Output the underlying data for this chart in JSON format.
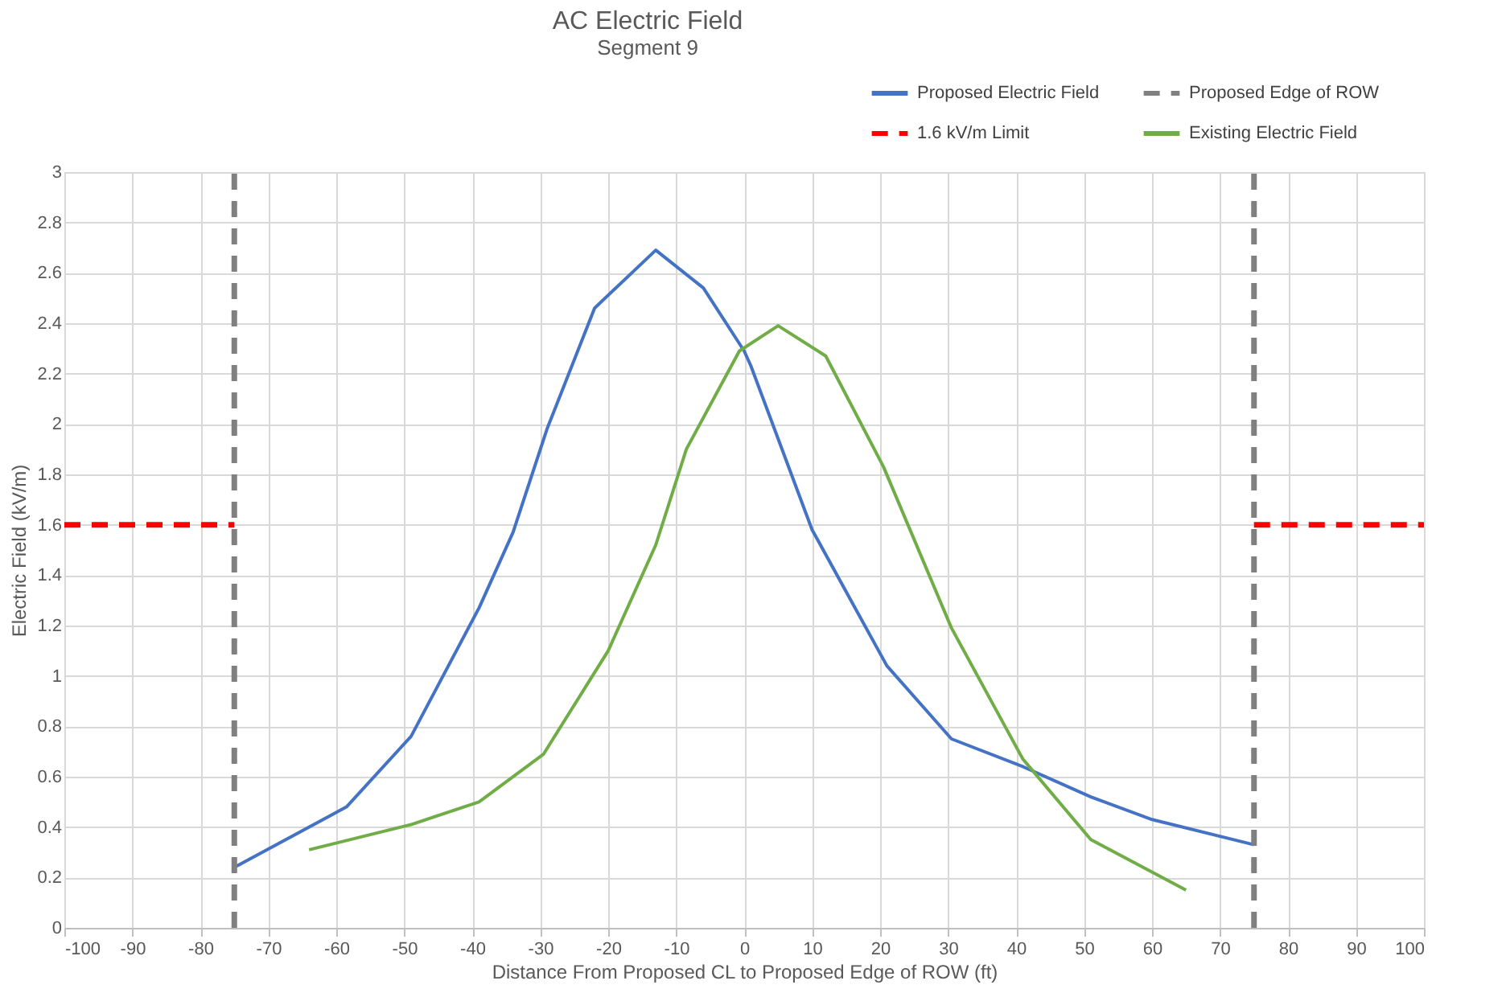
{
  "chart_data": {
    "type": "line",
    "title": "AC Electric Field",
    "subtitle": "Segment 9",
    "xlabel": "Distance From Proposed CL to Proposed Edge of ROW (ft)",
    "ylabel": "Electric Field (kV/m)",
    "xlim": [
      -100,
      100
    ],
    "xticks": [
      -100,
      -90,
      -80,
      -70,
      -60,
      -50,
      -40,
      -30,
      -20,
      -10,
      0,
      10,
      20,
      30,
      40,
      50,
      60,
      70,
      80,
      90,
      100
    ],
    "ylim": [
      0,
      3
    ],
    "yticks": [
      0,
      0.2,
      0.4,
      0.6,
      0.8,
      1,
      1.2,
      1.4,
      1.6,
      1.8,
      2,
      2.2,
      2.4,
      2.6,
      2.8,
      3
    ],
    "grid": true,
    "legend": "top right",
    "marker": "none",
    "series": [
      {
        "name": "Proposed Electric Field",
        "color": "#4472c4",
        "line_style": "solid",
        "x": [
          -75,
          -58.5,
          -49,
          -39,
          -34,
          -29,
          -22,
          -13,
          -6,
          0,
          1,
          10,
          21,
          30.5,
          41,
          51,
          60,
          75
        ],
        "values": [
          0.24,
          0.48,
          0.76,
          1.27,
          1.57,
          1.98,
          2.46,
          2.69,
          2.54,
          2.29,
          2.23,
          1.58,
          1.04,
          0.75,
          0.64,
          0.52,
          0.43,
          0.33
        ]
      },
      {
        "name": "1.6 kV/m Limit",
        "color": "#ff0000",
        "line_style": "dashed",
        "x": [
          -100,
          -75,
          0,
          75,
          100
        ],
        "values": [
          1.6,
          1.6,
          null,
          1.6,
          1.6
        ]
      },
      {
        "name": "Proposed Edge of ROW",
        "color": "#808080",
        "line_style": "dashed",
        "x": [
          -75,
          -75,
          0,
          75,
          75
        ],
        "values": [
          0,
          3,
          null,
          0,
          3
        ]
      },
      {
        "name": "Existing Electric Field",
        "color": "#70ad47",
        "line_style": "solid",
        "x": [
          -64,
          -49,
          -39,
          -29.5,
          -20,
          -13,
          -8.5,
          -0.7,
          5,
          12,
          20.5,
          30.5,
          41,
          51,
          65
        ],
        "values": [
          0.31,
          0.41,
          0.5,
          0.69,
          1.1,
          1.52,
          1.9,
          2.29,
          2.39,
          2.27,
          1.83,
          1.19,
          0.67,
          0.35,
          0.15
        ]
      }
    ]
  }
}
